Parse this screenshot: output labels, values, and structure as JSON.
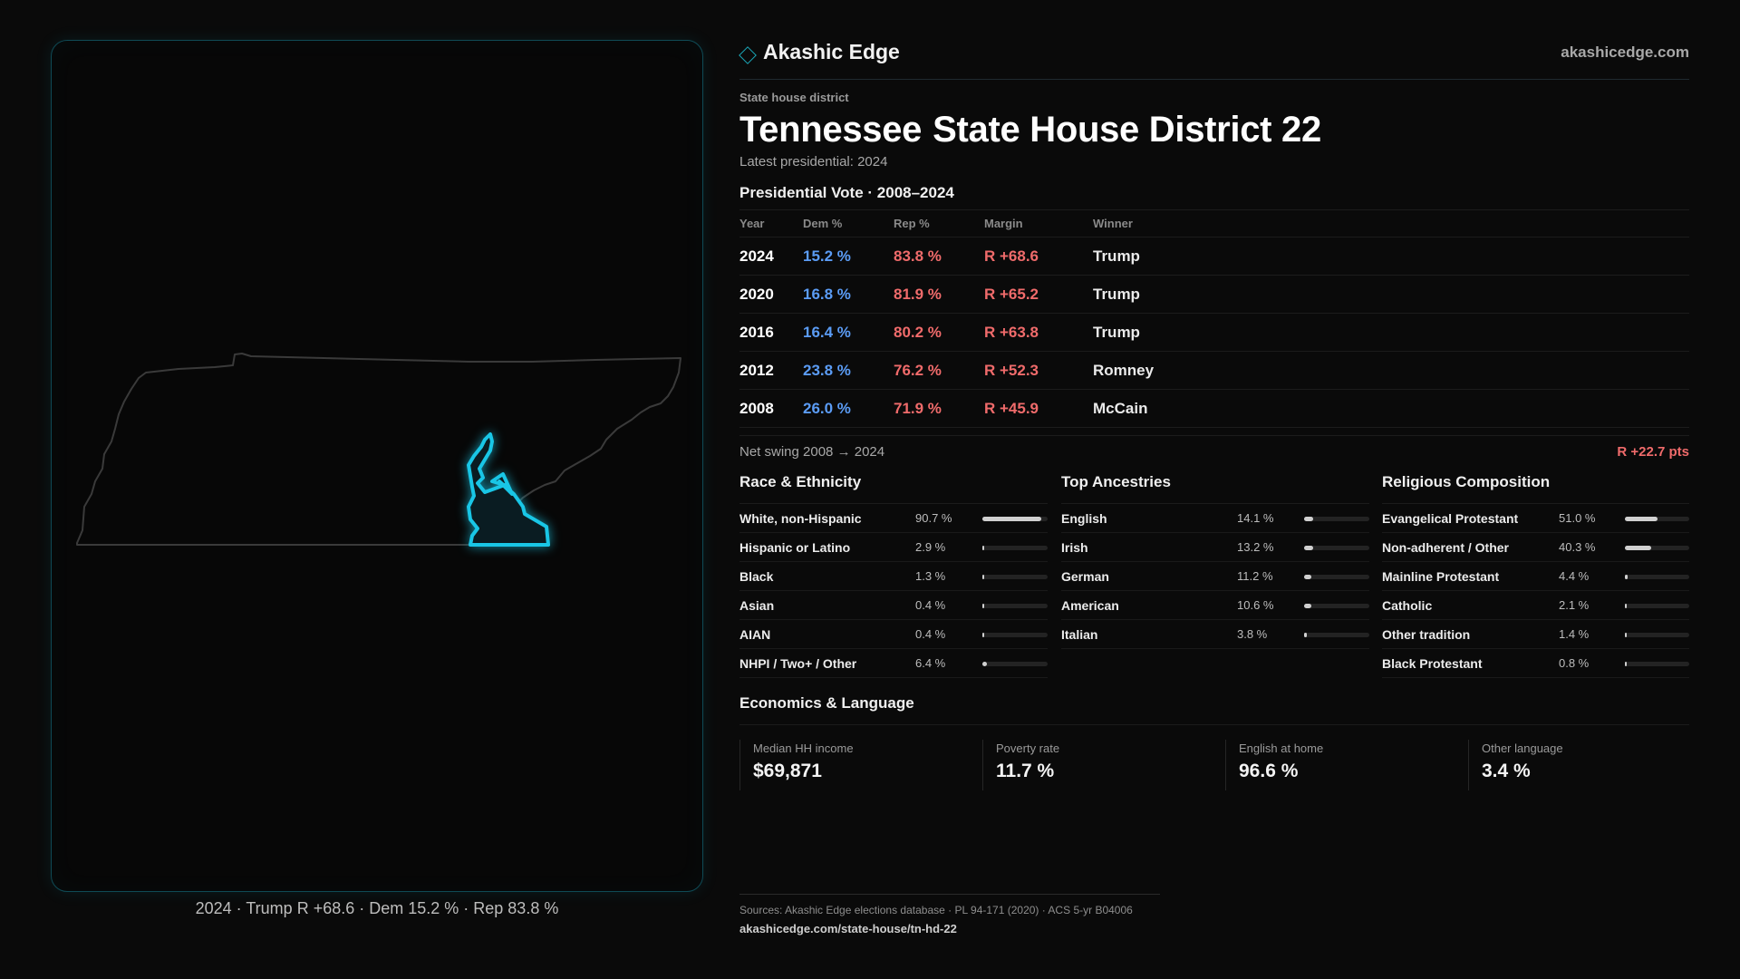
{
  "brand": {
    "name": "Akashic Edge",
    "url": "akashicedge.com",
    "logo_icon": "diamond-outline-icon",
    "accent": "#1aa7b8"
  },
  "header": {
    "eyebrow": "State house district",
    "title_state": "Tennessee",
    "title_district": "State House District 22",
    "subtitle": "Latest presidential: 2024"
  },
  "map": {
    "caption": "2024 · Trump R +68.6 · Dem 15.2 % · Rep 83.8 %",
    "outline_color": "#3a3a3a",
    "highlight_color": "#19c6e6"
  },
  "presidential": {
    "title": "Presidential Vote · 2008–2024",
    "headers": {
      "year": "Year",
      "dem": "Dem %",
      "rep": "Rep %",
      "margin": "Margin",
      "winner": "Winner"
    },
    "rows": [
      {
        "year": "2024",
        "dem": "15.2 %",
        "rep": "83.8 %",
        "margin": "R +68.6",
        "winner": "Trump"
      },
      {
        "year": "2020",
        "dem": "16.8 %",
        "rep": "81.9 %",
        "margin": "R +65.2",
        "winner": "Trump"
      },
      {
        "year": "2016",
        "dem": "16.4 %",
        "rep": "80.2 %",
        "margin": "R +63.8",
        "winner": "Trump"
      },
      {
        "year": "2012",
        "dem": "23.8 %",
        "rep": "76.2 %",
        "margin": "R +52.3",
        "winner": "Romney"
      },
      {
        "year": "2008",
        "dem": "26.0 %",
        "rep": "71.9 %",
        "margin": "R +45.9",
        "winner": "McCain"
      }
    ],
    "swing_label": "Net swing 2008 → 2024",
    "swing_value": "R +22.7 pts",
    "colors": {
      "dem": "#5b9cf5",
      "rep": "#f06b6b"
    }
  },
  "race": {
    "title": "Race & Ethnicity",
    "items": [
      {
        "label": "White, non-Hispanic",
        "value": "90.7 %",
        "pct": 90.7
      },
      {
        "label": "Hispanic or Latino",
        "value": "2.9 %",
        "pct": 2.9
      },
      {
        "label": "Black",
        "value": "1.3 %",
        "pct": 1.3
      },
      {
        "label": "Asian",
        "value": "0.4 %",
        "pct": 0.4
      },
      {
        "label": "AIAN",
        "value": "0.4 %",
        "pct": 0.4
      },
      {
        "label": "NHPI / Two+ / Other",
        "value": "6.4 %",
        "pct": 6.4
      }
    ]
  },
  "ancestry": {
    "title": "Top Ancestries",
    "items": [
      {
        "label": "English",
        "value": "14.1 %",
        "pct": 14.1
      },
      {
        "label": "Irish",
        "value": "13.2 %",
        "pct": 13.2
      },
      {
        "label": "German",
        "value": "11.2 %",
        "pct": 11.2
      },
      {
        "label": "American",
        "value": "10.6 %",
        "pct": 10.6
      },
      {
        "label": "Italian",
        "value": "3.8 %",
        "pct": 3.8
      }
    ]
  },
  "religion": {
    "title": "Religious Composition",
    "items": [
      {
        "label": "Evangelical Protestant",
        "value": "51.0 %",
        "pct": 51.0
      },
      {
        "label": "Non-adherent / Other",
        "value": "40.3 %",
        "pct": 40.3
      },
      {
        "label": "Mainline Protestant",
        "value": "4.4 %",
        "pct": 4.4
      },
      {
        "label": "Catholic",
        "value": "2.1 %",
        "pct": 2.1
      },
      {
        "label": "Other tradition",
        "value": "1.4 %",
        "pct": 1.4
      },
      {
        "label": "Black Protestant",
        "value": "0.8 %",
        "pct": 0.8
      }
    ]
  },
  "economics": {
    "title": "Economics & Language",
    "cards": [
      {
        "label": "Median HH income",
        "value": "$69,871"
      },
      {
        "label": "Poverty rate",
        "value": "11.7 %"
      },
      {
        "label": "English at home",
        "value": "96.6 %"
      },
      {
        "label": "Other language",
        "value": "3.4 %"
      }
    ]
  },
  "footer": {
    "sources": "Sources: Akashic Edge elections database · PL 94-171 (2020) · ACS 5-yr B04006",
    "link": "akashicedge.com/state-house/tn-hd-22"
  }
}
